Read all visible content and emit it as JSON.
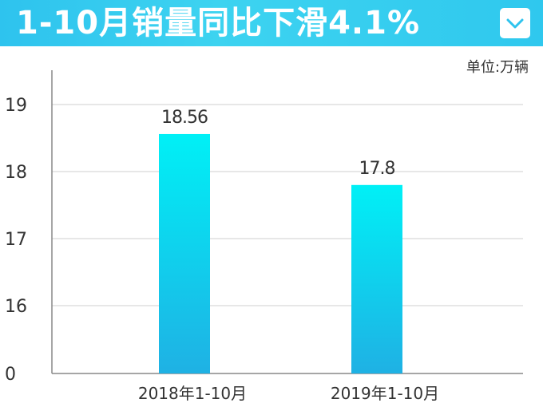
{
  "header": {
    "title": "1-10月销量同比下滑4.1%",
    "dropdown_icon": "chevron-down-icon",
    "accent_color": "#2ec3ee"
  },
  "unit": "单位:万辆",
  "chart_data": {
    "type": "bar",
    "title": "1-10月销量同比下滑4.1%",
    "categories": [
      "2018年1-10月",
      "2019年1-10月"
    ],
    "values": [
      18.56,
      17.8
    ],
    "data_labels": [
      "18.56",
      "17.8"
    ],
    "yticks": [
      "0",
      "16",
      "17",
      "18",
      "19"
    ],
    "axis_break": true,
    "grid": true,
    "colors": {
      "bar_top": "#00f0f6",
      "bar_bottom": "#1fb1e4",
      "grid": "#cfcfcf",
      "axis": "#888888"
    }
  }
}
